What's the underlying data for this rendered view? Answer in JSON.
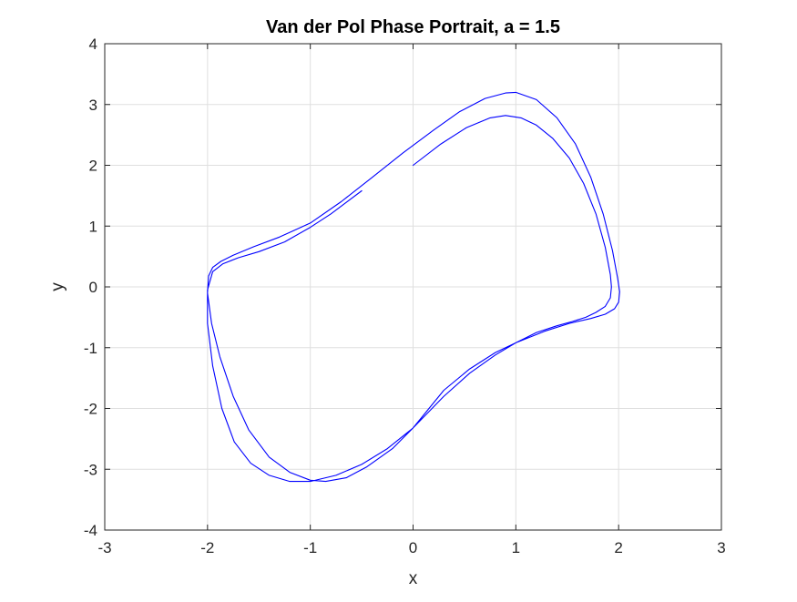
{
  "chart_data": {
    "type": "line",
    "title": "Van der Pol Phase Portrait, a = 1.5",
    "xlabel": "x",
    "ylabel": "y",
    "xlim": [
      -3,
      3
    ],
    "ylim": [
      -4,
      4
    ],
    "xticks": [
      -3,
      -2,
      -1,
      0,
      1,
      2,
      3
    ],
    "yticks": [
      -4,
      -3,
      -2,
      -1,
      0,
      1,
      2,
      3,
      4
    ],
    "grid": true,
    "legend": "none",
    "series": [
      {
        "color": "#0000ff",
        "x": [
          0.0,
          0.27,
          0.52,
          0.75,
          0.9,
          1.05,
          1.2,
          1.36,
          1.52,
          1.66,
          1.78,
          1.87,
          1.92,
          1.93,
          1.92,
          1.87,
          1.78,
          1.68,
          1.55,
          1.4,
          1.2,
          1.0,
          0.8,
          0.55,
          0.3,
          0.0,
          -0.2,
          -0.45,
          -0.65,
          -0.85,
          -1.0,
          -1.2,
          -1.4,
          -1.6,
          -1.75,
          -1.88,
          -1.96,
          -2.0,
          -1.99,
          -1.95,
          -1.87,
          -1.75,
          -1.55,
          -1.3,
          -1.0,
          -0.7,
          -0.4,
          -0.1,
          0.2,
          0.45,
          0.7,
          0.9,
          1.0,
          1.2,
          1.4,
          1.58,
          1.73,
          1.85,
          1.94,
          1.99,
          2.01,
          2.0,
          1.96,
          1.87,
          1.73,
          1.52,
          1.28,
          1.0,
          0.8,
          0.55,
          0.3,
          0.0,
          -0.25,
          -0.5,
          -0.75,
          -1.0,
          -1.2,
          -1.4,
          -1.58,
          -1.74,
          -1.86,
          -1.95,
          -2.0,
          -2.0,
          -1.95,
          -1.85,
          -1.7,
          -1.5,
          -1.25,
          -1.0,
          -0.8,
          -0.5
        ],
        "y": [
          2.0,
          2.35,
          2.62,
          2.78,
          2.82,
          2.78,
          2.66,
          2.44,
          2.12,
          1.7,
          1.2,
          0.65,
          0.2,
          0.0,
          -0.18,
          -0.32,
          -0.42,
          -0.5,
          -0.57,
          -0.64,
          -0.75,
          -0.92,
          -1.12,
          -1.42,
          -1.8,
          -2.32,
          -2.66,
          -2.96,
          -3.14,
          -3.2,
          -3.18,
          -3.05,
          -2.8,
          -2.35,
          -1.8,
          -1.15,
          -0.6,
          -0.1,
          0.18,
          0.32,
          0.42,
          0.52,
          0.66,
          0.82,
          1.05,
          1.4,
          1.8,
          2.2,
          2.58,
          2.88,
          3.1,
          3.19,
          3.2,
          3.08,
          2.78,
          2.35,
          1.8,
          1.2,
          0.6,
          0.15,
          -0.08,
          -0.25,
          -0.36,
          -0.45,
          -0.52,
          -0.6,
          -0.73,
          -0.92,
          -1.08,
          -1.35,
          -1.7,
          -2.32,
          -2.66,
          -2.92,
          -3.1,
          -3.2,
          -3.2,
          -3.1,
          -2.9,
          -2.55,
          -2.0,
          -1.3,
          -0.6,
          -0.05,
          0.25,
          0.38,
          0.48,
          0.58,
          0.74,
          0.98,
          1.2,
          1.58
        ]
      }
    ]
  }
}
